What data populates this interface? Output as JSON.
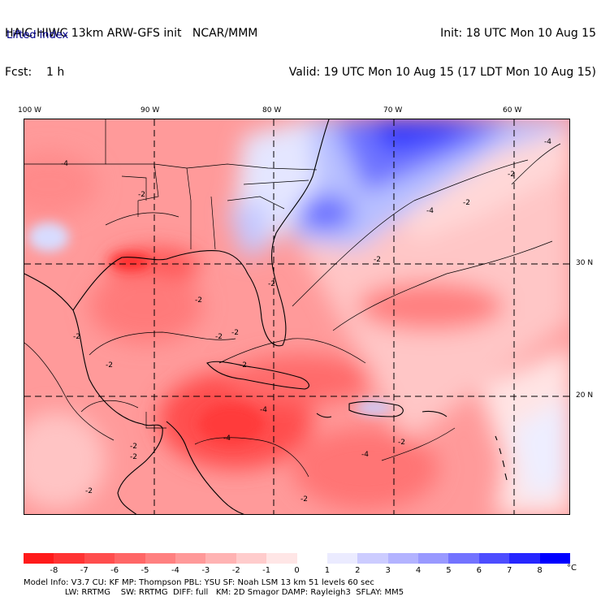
{
  "header": {
    "left_line1": "HAIC-HIWC 13km ARW-GFS init   NCAR/MMM",
    "left_line2": "Fcst:    1 h",
    "right_line1": "Init: 18 UTC Mon 10 Aug 15",
    "right_line2": "Valid: 19 UTC Mon 10 Aug 15 (17 LDT Mon 10 Aug 15)",
    "field_name": "Lifted index"
  },
  "map": {
    "lon_labels": [
      "100 W",
      "90 W",
      "80 W",
      "70 W",
      "60 W"
    ],
    "lat_labels": [
      "30 N",
      "20 N"
    ],
    "contour_labels": [
      "-4",
      "-2",
      "-2",
      "-2",
      "-2",
      "-2",
      "-2",
      "-2",
      "-2",
      "-2",
      "-2",
      "-4",
      "-4",
      "-4",
      "-4",
      "-2",
      "-2",
      "-2",
      "-2",
      "-2",
      "-4",
      "-2"
    ]
  },
  "colorbar": {
    "ticks": [
      "-8",
      "-7",
      "-6",
      "-5",
      "-4",
      "-3",
      "-2",
      "-1",
      "0",
      "1",
      "2",
      "3",
      "4",
      "5",
      "6",
      "7",
      "8"
    ],
    "unit": "°C",
    "colors": [
      "#ff1a1a",
      "#ff3333",
      "#ff4d4d",
      "#ff6666",
      "#ff8080",
      "#ff9999",
      "#ffb3b3",
      "#ffcccc",
      "#ffe6e6",
      "#ffffff",
      "#ebebff",
      "#ccccff",
      "#b3b3ff",
      "#9999ff",
      "#7373ff",
      "#4d4dff",
      "#2626ff",
      "#0000ff"
    ]
  },
  "footer": {
    "line1": "Model Info: V3.7    CU: KF      MP: Thompson    PBL: YSU      SF: Noah LSM    13 km   51 levels  60 sec",
    "line2": "                LW: RRTMG    SW: RRTMG  DIFF: full   KM: 2D Smagor DAMP: Rayleigh3  SFLAY: MM5"
  }
}
